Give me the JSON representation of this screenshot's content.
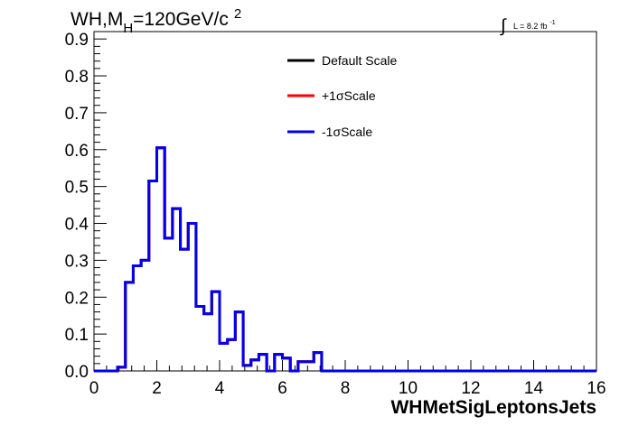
{
  "chart_data": {
    "type": "line",
    "title": {
      "main": "WH,M",
      "sub": "H",
      "tail": "=120GeV/c",
      "sup": "2"
    },
    "lumi": {
      "integral": "∫",
      "text": "L = 8.2 fb",
      "sup": "-1"
    },
    "xlabel": "WHMetSigLeptonsJets",
    "ylabel": "",
    "xlim": [
      0,
      16
    ],
    "ylim": [
      0,
      0.92
    ],
    "x_ticks": [
      "0",
      "2",
      "4",
      "6",
      "8",
      "10",
      "12",
      "14",
      "16"
    ],
    "y_ticks": [
      "0.0",
      "0.1",
      "0.2",
      "0.3",
      "0.4",
      "0.5",
      "0.6",
      "0.7",
      "0.8",
      "0.9"
    ],
    "bin_width": 0.25,
    "series": [
      {
        "name": "Default Scale",
        "color": "#000000",
        "values": [
          0,
          0,
          0,
          0.01,
          0.24,
          0.285,
          0.3,
          0.515,
          0.605,
          0.36,
          0.44,
          0.33,
          0.4,
          0.175,
          0.155,
          0.215,
          0.075,
          0.085,
          0.16,
          0.015,
          0.03,
          0.045,
          0.0,
          0.045,
          0.035,
          0.0,
          0.025,
          0.025,
          0.05,
          0.0,
          0,
          0,
          0,
          0,
          0,
          0,
          0,
          0,
          0,
          0,
          0,
          0,
          0,
          0,
          0,
          0,
          0,
          0,
          0,
          0,
          0,
          0,
          0,
          0,
          0,
          0,
          0,
          0,
          0,
          0,
          0,
          0,
          0,
          0
        ]
      },
      {
        "name": "+1σScale",
        "color": "#ff0000",
        "values": [
          0,
          0,
          0,
          0.01,
          0.24,
          0.285,
          0.3,
          0.515,
          0.605,
          0.36,
          0.44,
          0.33,
          0.4,
          0.175,
          0.155,
          0.215,
          0.075,
          0.085,
          0.16,
          0.015,
          0.03,
          0.045,
          0.0,
          0.045,
          0.035,
          0.0,
          0.025,
          0.025,
          0.05,
          0.0,
          0,
          0,
          0,
          0,
          0,
          0,
          0,
          0,
          0,
          0,
          0,
          0,
          0,
          0,
          0,
          0,
          0,
          0,
          0,
          0,
          0,
          0,
          0,
          0,
          0,
          0,
          0,
          0,
          0,
          0,
          0,
          0,
          0,
          0
        ]
      },
      {
        "name": "-1σScale",
        "color": "#0000ee",
        "values": [
          0,
          0,
          0,
          0.01,
          0.24,
          0.285,
          0.3,
          0.515,
          0.605,
          0.36,
          0.44,
          0.33,
          0.4,
          0.175,
          0.155,
          0.215,
          0.075,
          0.085,
          0.16,
          0.015,
          0.03,
          0.045,
          0.0,
          0.045,
          0.035,
          0.0,
          0.025,
          0.025,
          0.05,
          0.0,
          0,
          0,
          0,
          0,
          0,
          0,
          0,
          0,
          0,
          0,
          0,
          0,
          0,
          0,
          0,
          0,
          0,
          0,
          0,
          0,
          0,
          0,
          0,
          0,
          0,
          0,
          0,
          0,
          0,
          0,
          0,
          0,
          0,
          0
        ]
      }
    ],
    "legend_placement": "top-center",
    "grid": false
  }
}
